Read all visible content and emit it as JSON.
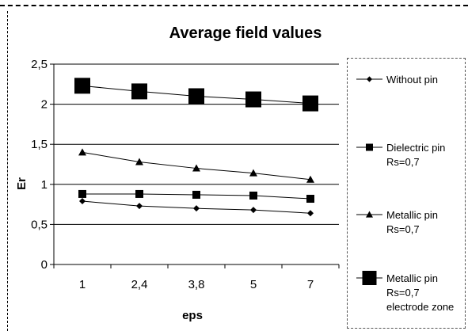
{
  "chart_data": {
    "type": "line",
    "title": "Average field values",
    "xlabel": "eps",
    "ylabel": "Er",
    "categories": [
      "1",
      "2,4",
      "3,8",
      "5",
      "7"
    ],
    "ylim": [
      0,
      2.5
    ],
    "yticks": [
      0,
      0.5,
      1,
      1.5,
      2,
      2.5
    ],
    "ytick_labels": [
      "0",
      "0,5",
      "1",
      "1,5",
      "2",
      "2,5"
    ],
    "grid": "horizontal",
    "legend_position": "right",
    "series": [
      {
        "name_lines": [
          "Without pin"
        ],
        "marker": "diamond",
        "marker_size": 4,
        "values": [
          0.79,
          0.73,
          0.7,
          0.68,
          0.64
        ]
      },
      {
        "name_lines": [
          "Dielectric pin",
          "Rs=0,7"
        ],
        "marker": "square",
        "marker_size": 5,
        "values": [
          0.88,
          0.88,
          0.87,
          0.86,
          0.82
        ]
      },
      {
        "name_lines": [
          "Metallic pin",
          "Rs=0,7"
        ],
        "marker": "triangle",
        "marker_size": 5,
        "values": [
          1.4,
          1.28,
          1.2,
          1.14,
          1.06
        ]
      },
      {
        "name_lines": [
          "Metallic  pin",
          "Rs=0,7",
          "electrode zone"
        ],
        "marker": "square",
        "marker_size": 10,
        "values": [
          2.23,
          2.16,
          2.1,
          2.06,
          2.01
        ]
      }
    ]
  },
  "colors": {
    "line": "#000000",
    "grid": "#000000",
    "plot_bg": "#ffffff"
  }
}
